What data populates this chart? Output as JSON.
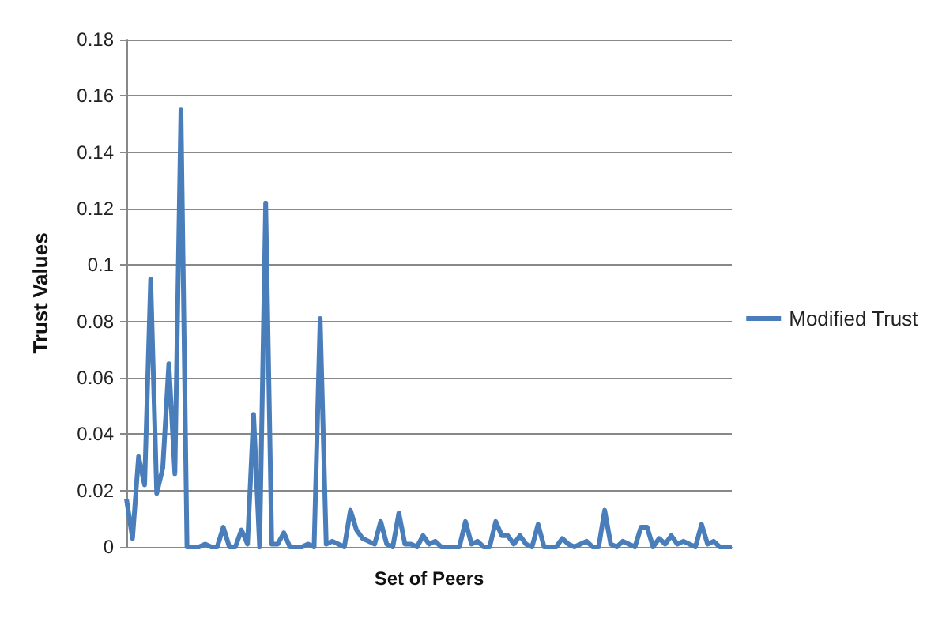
{
  "chart_data": {
    "type": "line",
    "xlabel": "Set of Peers",
    "ylabel": "Trust Values",
    "categories": [
      null,
      null,
      null,
      null,
      null,
      null,
      null,
      null,
      null,
      null,
      null,
      null,
      null,
      null,
      null,
      null,
      null,
      null,
      null,
      null,
      null,
      null,
      null,
      null,
      null,
      null,
      null,
      null,
      null,
      null,
      null,
      null,
      null,
      null,
      null,
      null,
      null,
      null,
      null,
      null,
      null,
      null,
      null,
      null,
      null,
      null,
      null,
      null,
      null,
      null,
      null,
      null,
      null,
      null,
      null,
      null,
      null,
      null,
      null,
      null,
      null,
      null,
      null,
      null,
      null,
      null,
      null,
      null,
      null,
      null,
      null,
      null,
      null,
      null,
      null,
      null,
      null,
      null,
      null,
      null,
      null,
      null,
      null,
      null,
      null,
      null,
      null,
      null,
      null,
      null,
      null,
      null,
      null,
      null,
      null,
      null,
      null,
      null,
      null,
      null,
      null
    ],
    "series": [
      {
        "name": "Modified Trust",
        "color": "#4a7ebb",
        "values": [
          0.017,
          0.003,
          0.032,
          0.022,
          0.095,
          0.019,
          0.028,
          0.065,
          0.026,
          0.155,
          0,
          0,
          0,
          0.001,
          0,
          0,
          0.007,
          0,
          0,
          0.006,
          0.001,
          0.047,
          0,
          0.122,
          0.001,
          0.001,
          0.005,
          0,
          0,
          0,
          0.001,
          0,
          0.081,
          0.001,
          0.002,
          0.001,
          0,
          0.013,
          0.006,
          0.003,
          0.002,
          0.001,
          0.009,
          0.001,
          0,
          0.012,
          0.001,
          0.001,
          0,
          0.004,
          0.001,
          0.002,
          0,
          0,
          0,
          0,
          0.009,
          0.001,
          0.002,
          0,
          0,
          0.009,
          0.004,
          0.004,
          0.001,
          0.004,
          0.001,
          0,
          0.008,
          0,
          0,
          0,
          0.003,
          0.001,
          0,
          0.001,
          0.002,
          0,
          0,
          0.013,
          0.001,
          0,
          0.002,
          0.001,
          0,
          0.007,
          0.007,
          0,
          0.003,
          0.001,
          0.004,
          0.001,
          0.002,
          0.001,
          0,
          0.008,
          0.001,
          0.002,
          0,
          0,
          0
        ]
      }
    ],
    "ylim": [
      0,
      0.18
    ],
    "yticks": [
      0,
      0.02,
      0.04,
      0.06,
      0.08,
      0.1,
      0.12,
      0.14,
      0.16,
      0.18
    ],
    "grid": "y",
    "legend": "right",
    "marker": "none",
    "line_style": "solid"
  }
}
